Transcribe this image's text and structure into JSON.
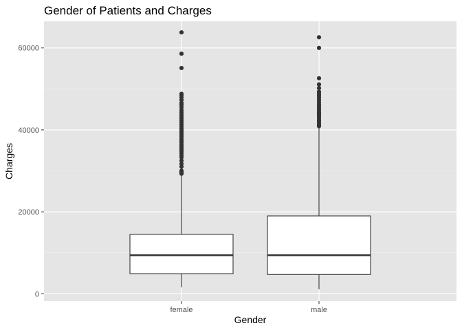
{
  "chart_data": {
    "type": "boxplot",
    "title": "Gender of Patients and Charges",
    "xlabel": "Gender",
    "ylabel": "Charges",
    "categories": [
      "female",
      "male"
    ],
    "ylim": [
      -1800,
      66500
    ],
    "yticks": [
      0,
      20000,
      40000,
      60000
    ],
    "ytick_labels": [
      "0",
      "20000",
      "40000",
      "60000"
    ],
    "grid": true,
    "legend": "none",
    "panel_background": "#e5e5e5",
    "box_fill": "#ffffff",
    "line_color": "#333333",
    "series": [
      {
        "category": "female",
        "min": 1600,
        "q1": 4900,
        "median": 9400,
        "q3": 14500,
        "upper_whisker": 29000,
        "outliers": [
          29300,
          29600,
          29800,
          30000,
          31000,
          31700,
          32500,
          33300,
          33800,
          34300,
          34800,
          35200,
          35600,
          36000,
          36400,
          36900,
          37300,
          37800,
          38300,
          38800,
          39300,
          39800,
          40300,
          40800,
          41300,
          41800,
          42300,
          42800,
          43300,
          43800,
          44300,
          44800,
          45500,
          46100,
          46600,
          47300,
          47900,
          48400,
          48800,
          55100,
          58600,
          63800
        ]
      },
      {
        "category": "male",
        "min": 1100,
        "q1": 4700,
        "median": 9400,
        "q3": 19000,
        "upper_whisker": 40500,
        "outliers": [
          40900,
          41300,
          41800,
          42300,
          42800,
          43300,
          43800,
          44200,
          44700,
          45200,
          45700,
          46200,
          46700,
          47300,
          47800,
          48300,
          48800,
          49300,
          50200,
          51100,
          52600,
          60000,
          62600
        ]
      }
    ]
  }
}
